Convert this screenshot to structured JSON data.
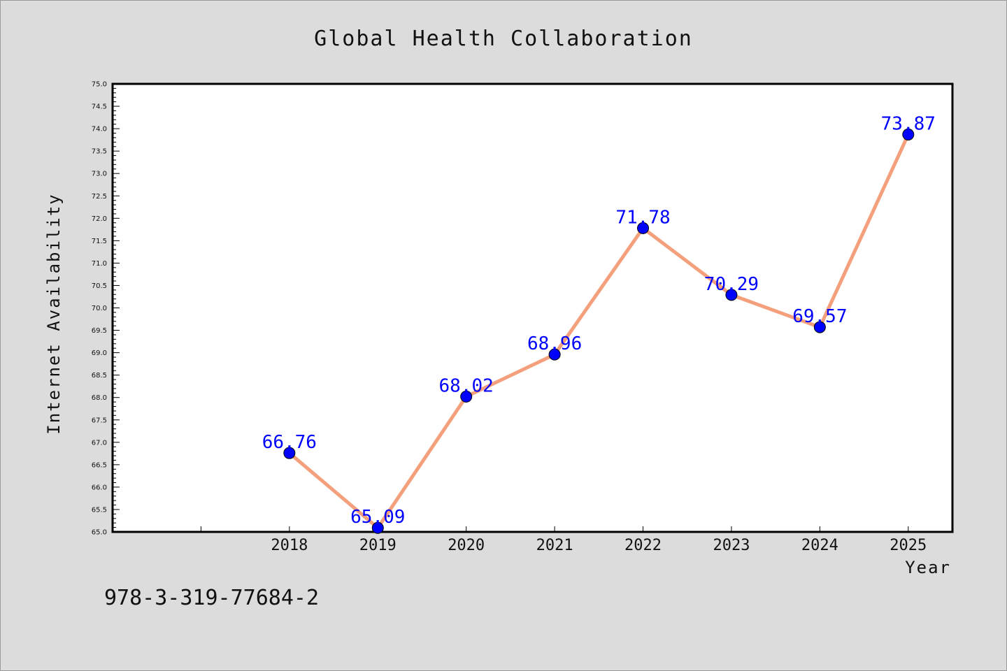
{
  "chart_data": {
    "type": "line",
    "title": "Global Health Collaboration",
    "xlabel": "Year",
    "ylabel": "Internet Availability",
    "x": [
      2018,
      2019,
      2020,
      2021,
      2022,
      2023,
      2024,
      2025
    ],
    "x_tick_labels": [
      "2018",
      "2019",
      "2020",
      "2021",
      "2022",
      "2023",
      "2024",
      "2025"
    ],
    "x_range": [
      2016,
      2025.5
    ],
    "series": [
      {
        "values": [
          66.76,
          65.09,
          68.02,
          68.96,
          71.78,
          70.29,
          69.57,
          73.87
        ],
        "labels": [
          "66.76",
          "65.09",
          "68.02",
          "68.96",
          "71.78",
          "70.29",
          "69.57",
          "73.87"
        ],
        "line_color": "#f4a07c",
        "marker_color": "#0000ff"
      }
    ],
    "ylim": [
      65.0,
      75.0
    ],
    "y_ticks": [
      "65.0",
      "65.5",
      "66.0",
      "66.5",
      "67.0",
      "67.5",
      "68.0",
      "68.5",
      "69.0",
      "69.5",
      "70.0",
      "70.5",
      "71.0",
      "71.5",
      "72.0",
      "72.5",
      "73.0",
      "73.5",
      "74.0",
      "74.5",
      "75.0"
    ],
    "grid": false,
    "legend": "none"
  },
  "footer": {
    "code": "978-3-319-77684-2"
  },
  "colors": {
    "background": "#dcdcdc",
    "plot_background": "#ffffff",
    "line": "#f4a07c",
    "marker": "#0000ff",
    "data_label": "#0000ff"
  }
}
